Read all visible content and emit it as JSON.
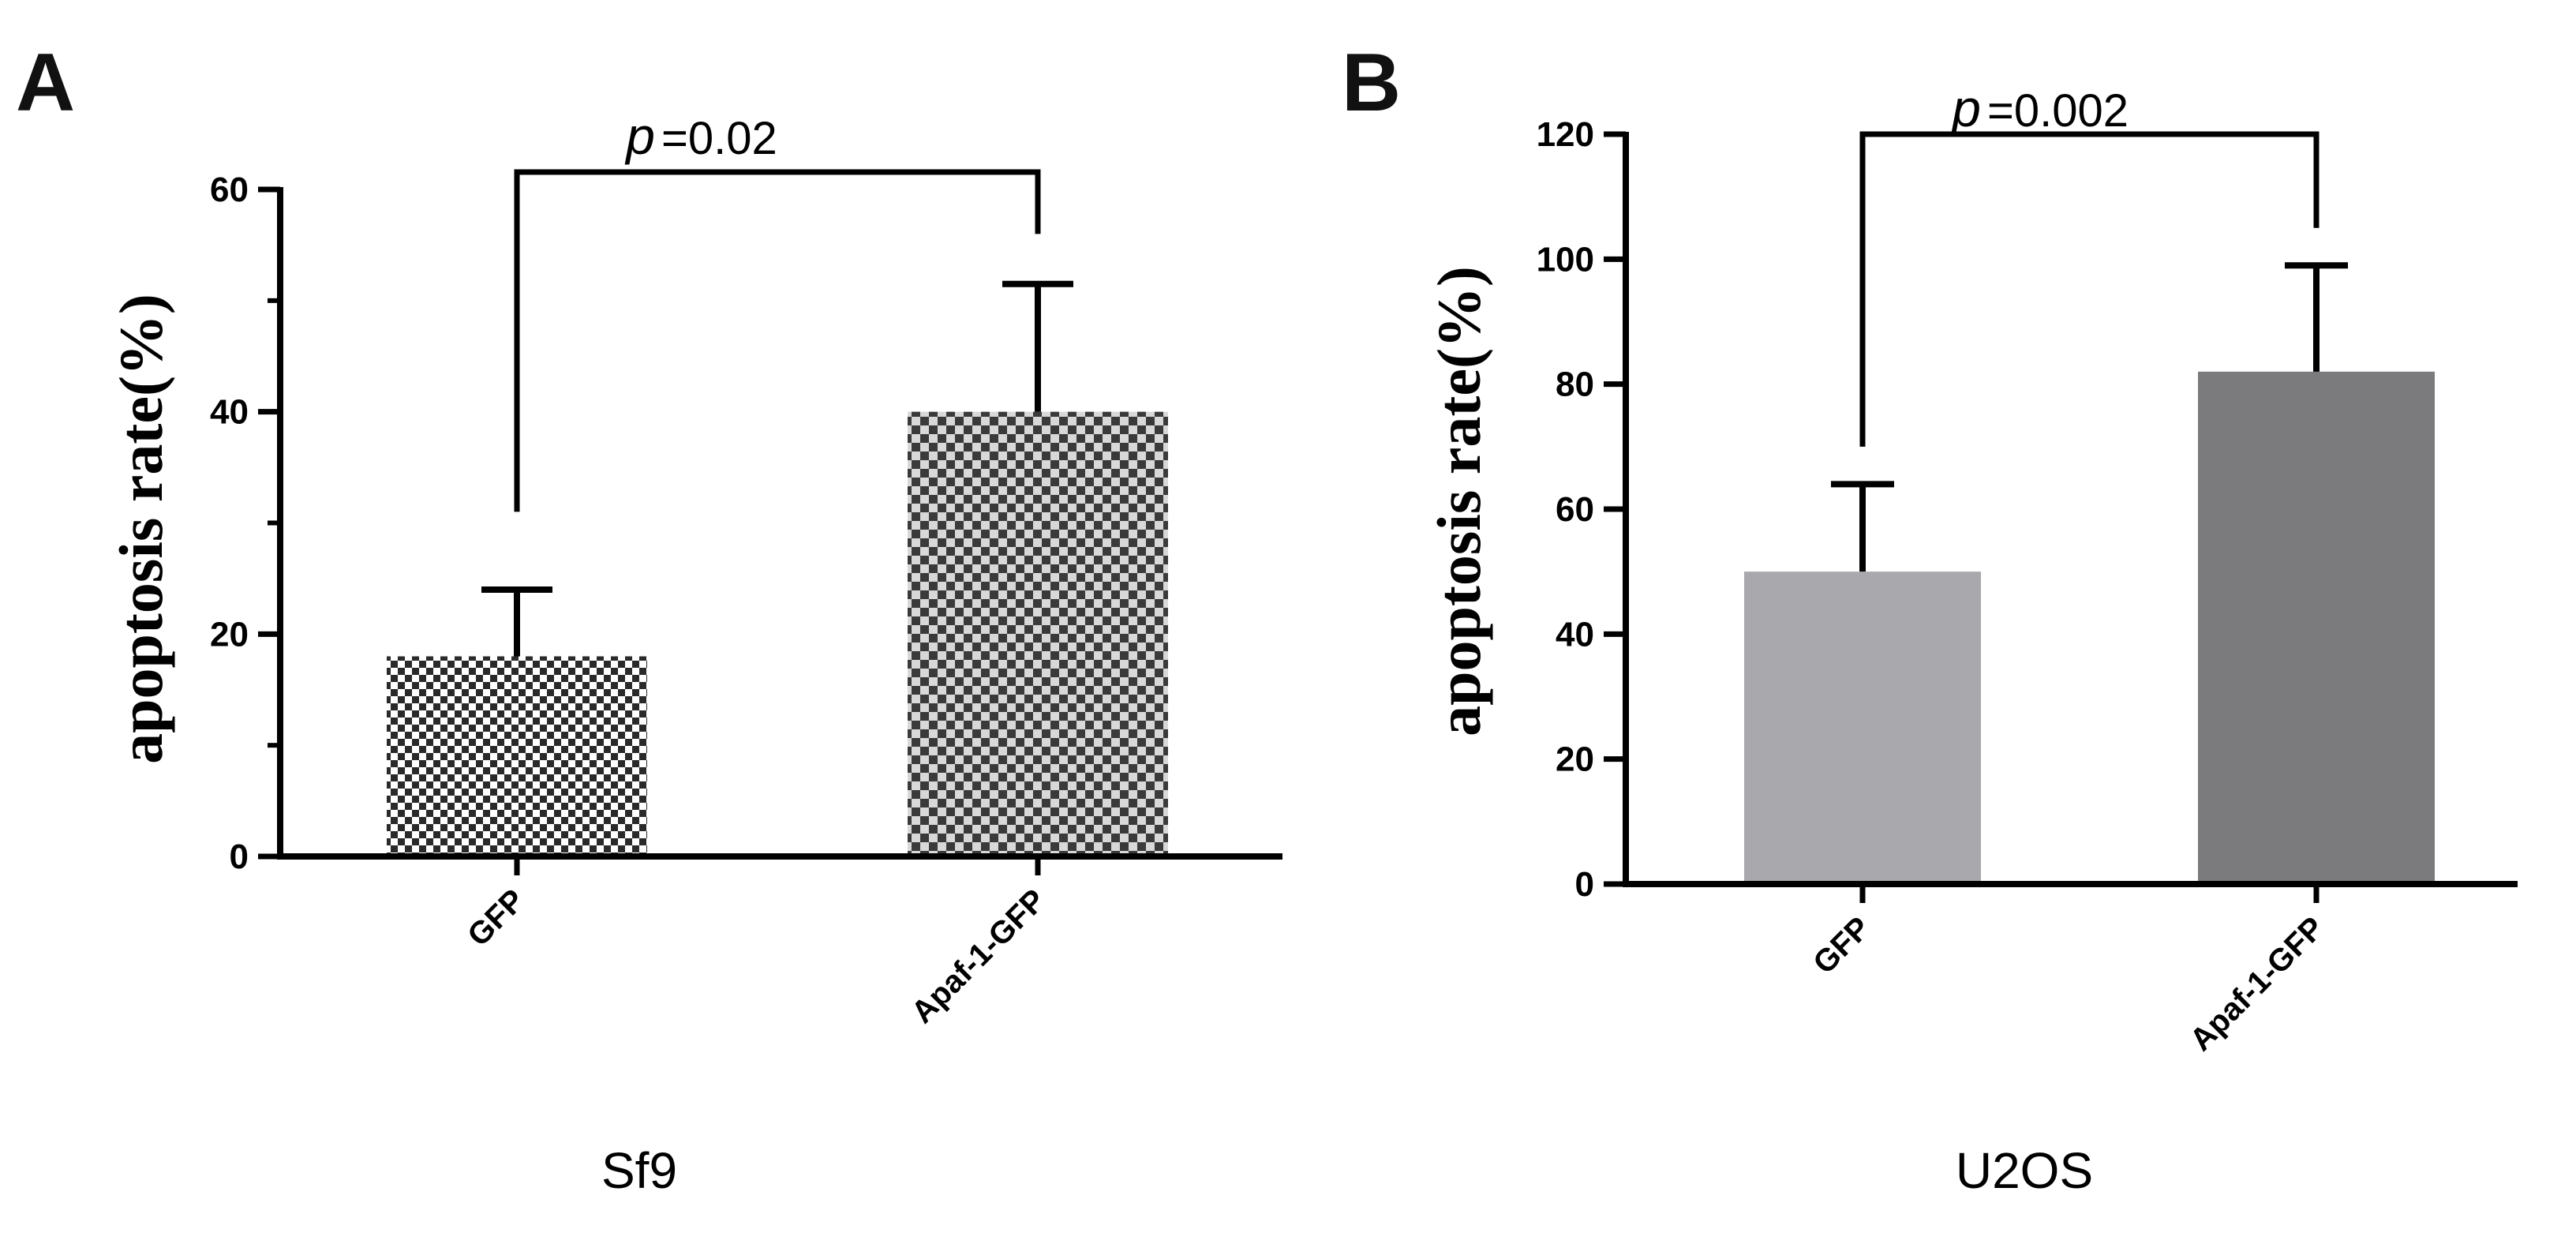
{
  "chart_data": [
    {
      "panel": "A",
      "type": "bar",
      "categories": [
        "GFP",
        "Apaf-1-GFP"
      ],
      "values": [
        18,
        40
      ],
      "errors": [
        6,
        11.5
      ],
      "bar_colors": [
        "#2a2a2a",
        "#4a4a4a"
      ],
      "pattern": "checkerboard",
      "ylabel": "apoptosis rate(%)",
      "xlabel": "Sf9",
      "ylim": [
        0,
        60
      ],
      "yticks": [
        0,
        20,
        40,
        60
      ],
      "significance": {
        "p_symbol": "p",
        "text": "=0.02",
        "from": 0,
        "to": 1
      }
    },
    {
      "panel": "B",
      "type": "bar",
      "categories": [
        "GFP",
        "Apaf-1-GFP"
      ],
      "values": [
        50,
        82
      ],
      "errors": [
        14,
        17
      ],
      "bar_colors": [
        "#a9a9ad",
        "#7b7b7d"
      ],
      "pattern": "solid",
      "ylabel": "apoptosis rate(%)",
      "xlabel": "U2OS",
      "ylim": [
        0,
        120
      ],
      "yticks": [
        0,
        20,
        40,
        60,
        80,
        100,
        120
      ],
      "significance": {
        "p_symbol": "p",
        "text": "=0.002",
        "from": 0,
        "to": 1
      }
    }
  ]
}
